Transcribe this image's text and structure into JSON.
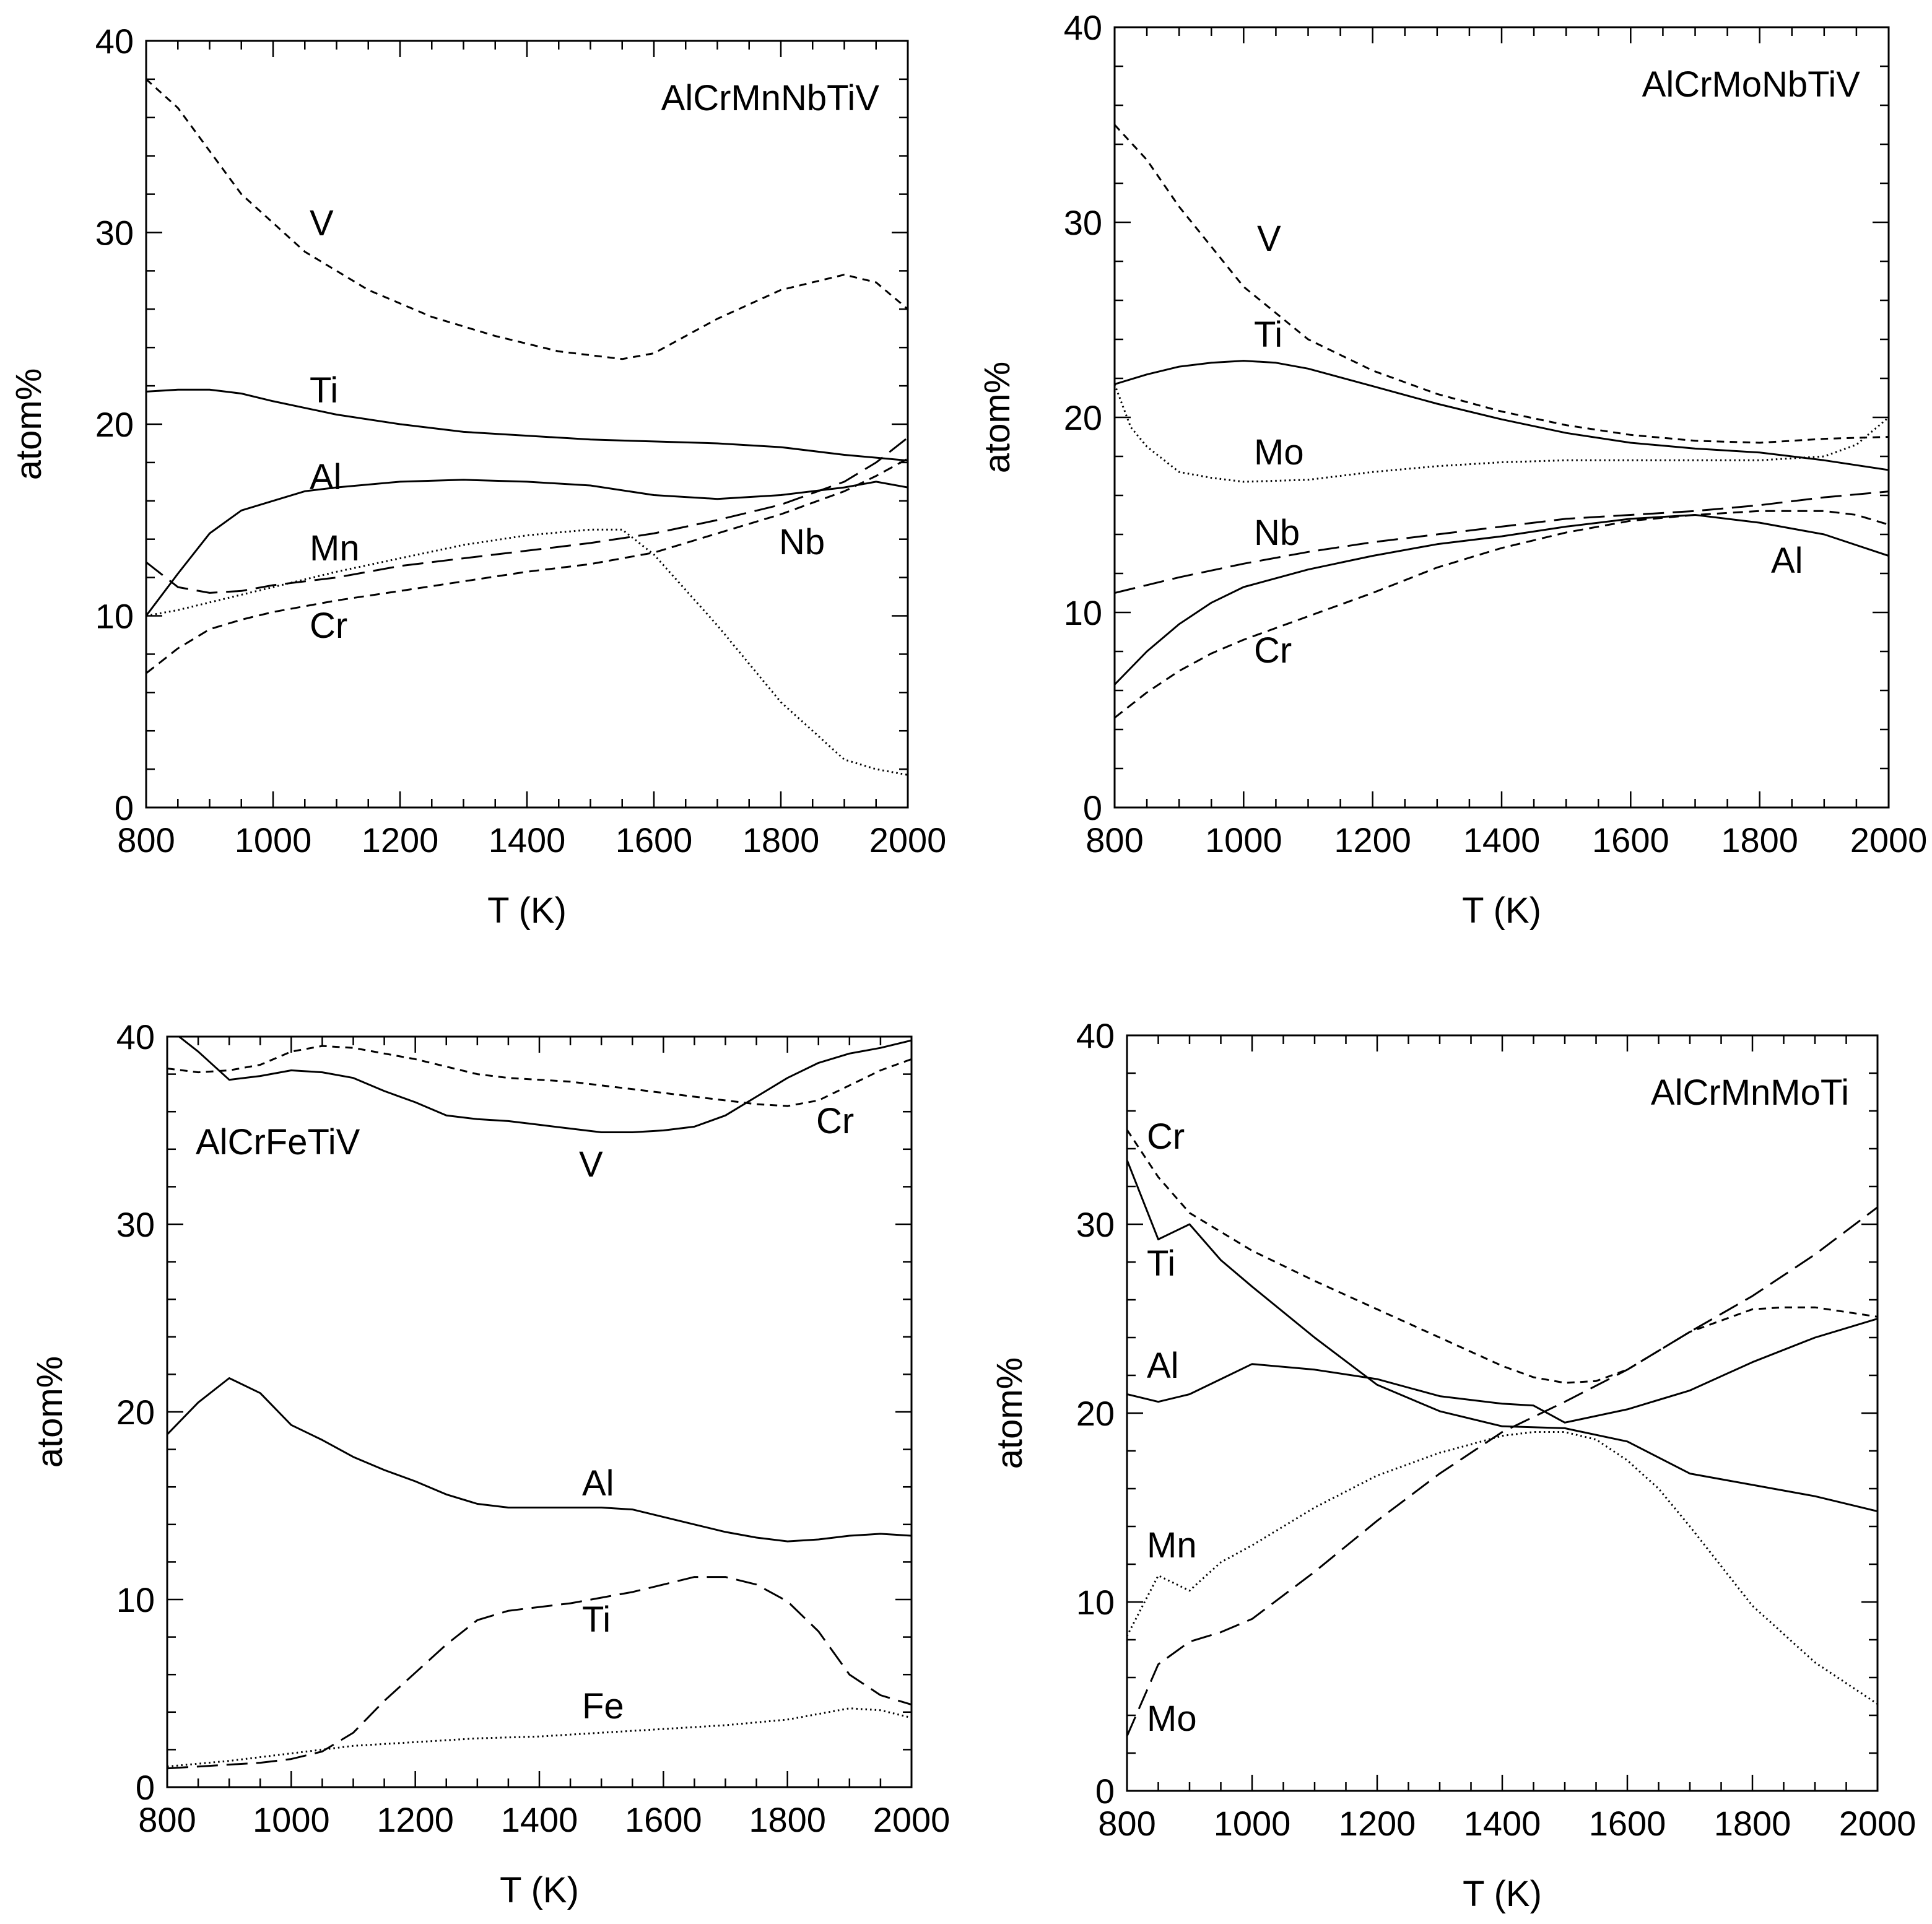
{
  "chart_data": [
    {
      "type": "line",
      "title": "AlCrMnNbTiV",
      "xlabel": "T (K)",
      "ylabel": "atom%",
      "xlim": [
        800,
        2000
      ],
      "ylim": [
        0,
        40
      ],
      "xticks": [
        800,
        1000,
        1200,
        1400,
        1600,
        1800,
        2000
      ],
      "yticks": [
        0,
        10,
        20,
        30,
        40
      ],
      "title_position": "top-right",
      "series": [
        {
          "name": "V",
          "style": "short-dash",
          "x": [
            800,
            850,
            950,
            1050,
            1150,
            1250,
            1350,
            1450,
            1550,
            1600,
            1700,
            1800,
            1900,
            1950,
            2000
          ],
          "y": [
            38,
            36.5,
            32,
            29,
            27,
            25.6,
            24.6,
            23.8,
            23.4,
            23.7,
            25.5,
            27,
            27.8,
            27.4,
            26
          ]
        },
        {
          "name": "Ti",
          "style": "solid",
          "x": [
            800,
            850,
            900,
            950,
            1000,
            1100,
            1200,
            1300,
            1400,
            1500,
            1600,
            1700,
            1800,
            1900,
            2000
          ],
          "y": [
            21.7,
            21.8,
            21.8,
            21.6,
            21.2,
            20.5,
            20,
            19.6,
            19.4,
            19.2,
            19.1,
            19,
            18.8,
            18.4,
            18.1
          ]
        },
        {
          "name": "Al",
          "style": "solid",
          "x": [
            800,
            850,
            900,
            950,
            1000,
            1050,
            1100,
            1200,
            1300,
            1400,
            1500,
            1600,
            1700,
            1800,
            1900,
            1950,
            2000
          ],
          "y": [
            10,
            12.2,
            14.3,
            15.5,
            16,
            16.5,
            16.7,
            17,
            17.1,
            17,
            16.8,
            16.3,
            16.1,
            16.3,
            16.7,
            17,
            16.7
          ]
        },
        {
          "name": "Mn",
          "style": "dotted",
          "x": [
            800,
            850,
            900,
            1000,
            1100,
            1200,
            1300,
            1400,
            1500,
            1550,
            1600,
            1700,
            1800,
            1900,
            1950,
            2000
          ],
          "y": [
            10,
            10.3,
            10.7,
            11.5,
            12.3,
            13,
            13.7,
            14.2,
            14.5,
            14.5,
            13.2,
            9.5,
            5.5,
            2.5,
            2,
            1.7
          ]
        },
        {
          "name": "Nb",
          "style": "long-dash",
          "x": [
            800,
            850,
            900,
            950,
            1000,
            1100,
            1200,
            1300,
            1400,
            1500,
            1600,
            1700,
            1800,
            1900,
            1950,
            2000
          ],
          "y": [
            12.8,
            11.5,
            11.2,
            11.3,
            11.6,
            12,
            12.6,
            13,
            13.4,
            13.8,
            14.3,
            15,
            15.8,
            17,
            18,
            19.3
          ]
        },
        {
          "name": "Cr",
          "style": "dash",
          "x": [
            800,
            850,
            900,
            950,
            1000,
            1100,
            1200,
            1300,
            1400,
            1500,
            1600,
            1700,
            1800,
            1900,
            1950,
            2000
          ],
          "y": [
            7,
            8.3,
            9.3,
            9.8,
            10.2,
            10.8,
            11.3,
            11.8,
            12.3,
            12.7,
            13.3,
            14.3,
            15.3,
            16.5,
            17.3,
            18.2
          ]
        }
      ]
    },
    {
      "type": "line",
      "title": "AlCrMoNbTiV",
      "xlabel": "T (K)",
      "ylabel": "atom%",
      "xlim": [
        800,
        2000
      ],
      "ylim": [
        0,
        40
      ],
      "xticks": [
        800,
        1000,
        1200,
        1400,
        1600,
        1800,
        2000
      ],
      "yticks": [
        0,
        10,
        20,
        30,
        40
      ],
      "title_position": "top-right",
      "series": [
        {
          "name": "V",
          "style": "short-dash",
          "x": [
            800,
            850,
            900,
            1000,
            1100,
            1200,
            1300,
            1400,
            1500,
            1600,
            1700,
            1800,
            1900,
            2000
          ],
          "y": [
            35,
            33.2,
            30.8,
            26.7,
            24,
            22.4,
            21.2,
            20.3,
            19.6,
            19.1,
            18.8,
            18.7,
            18.9,
            19
          ]
        },
        {
          "name": "Ti",
          "style": "solid",
          "x": [
            800,
            850,
            900,
            950,
            1000,
            1050,
            1100,
            1200,
            1300,
            1400,
            1500,
            1600,
            1700,
            1800,
            1900,
            2000
          ],
          "y": [
            21.7,
            22.2,
            22.6,
            22.8,
            22.9,
            22.8,
            22.5,
            21.6,
            20.7,
            19.9,
            19.2,
            18.7,
            18.4,
            18.2,
            17.8,
            17.3
          ]
        },
        {
          "name": "Mo",
          "style": "dotted",
          "x": [
            800,
            825,
            850,
            900,
            950,
            1000,
            1100,
            1200,
            1300,
            1400,
            1500,
            1600,
            1700,
            1800,
            1900,
            1950,
            2000
          ],
          "y": [
            21.7,
            19.5,
            18.5,
            17.2,
            16.9,
            16.7,
            16.8,
            17.2,
            17.5,
            17.7,
            17.8,
            17.8,
            17.8,
            17.8,
            18,
            18.6,
            20
          ]
        },
        {
          "name": "Nb",
          "style": "long-dash",
          "x": [
            800,
            900,
            1000,
            1100,
            1200,
            1300,
            1400,
            1500,
            1600,
            1700,
            1800,
            1900,
            2000
          ],
          "y": [
            11,
            11.8,
            12.5,
            13.1,
            13.6,
            14,
            14.4,
            14.8,
            15,
            15.2,
            15.5,
            15.9,
            16.2
          ]
        },
        {
          "name": "Al",
          "style": "solid",
          "x": [
            800,
            850,
            900,
            950,
            1000,
            1100,
            1200,
            1300,
            1400,
            1500,
            1600,
            1700,
            1800,
            1900,
            2000
          ],
          "y": [
            6.3,
            8,
            9.4,
            10.5,
            11.3,
            12.2,
            12.9,
            13.5,
            13.9,
            14.4,
            14.8,
            15,
            14.6,
            14,
            12.9
          ]
        },
        {
          "name": "Cr",
          "style": "dash",
          "x": [
            800,
            850,
            900,
            950,
            1000,
            1100,
            1200,
            1300,
            1400,
            1500,
            1600,
            1700,
            1800,
            1900,
            1950,
            2000
          ],
          "y": [
            4.6,
            5.9,
            7,
            7.9,
            8.6,
            9.8,
            11,
            12.3,
            13.3,
            14.1,
            14.7,
            15,
            15.2,
            15.2,
            15,
            14.5
          ]
        }
      ]
    },
    {
      "type": "line",
      "title": "AlCrFeTiV",
      "xlabel": "T (K)",
      "ylabel": "atom%",
      "xlim": [
        800,
        2000
      ],
      "ylim": [
        0,
        40
      ],
      "xticks": [
        800,
        1000,
        1200,
        1400,
        1600,
        1800,
        2000
      ],
      "yticks": [
        0,
        10,
        20,
        30,
        40
      ],
      "title_position": "top-left",
      "series": [
        {
          "name": "V",
          "style": "solid",
          "x": [
            800,
            850,
            900,
            950,
            1000,
            1050,
            1100,
            1150,
            1200,
            1250,
            1300,
            1350,
            1400,
            1450,
            1500,
            1550,
            1600,
            1650,
            1700,
            1750,
            1800,
            1850,
            1900,
            1950,
            2000
          ],
          "y": [
            40.5,
            39.2,
            37.7,
            37.9,
            38.2,
            38.1,
            37.8,
            37.1,
            36.5,
            35.8,
            35.6,
            35.5,
            35.3,
            35.1,
            34.9,
            34.9,
            35,
            35.2,
            35.8,
            36.8,
            37.8,
            38.6,
            39.1,
            39.4,
            39.8
          ]
        },
        {
          "name": "Cr",
          "style": "short-dash",
          "x": [
            800,
            850,
            900,
            950,
            1000,
            1050,
            1100,
            1150,
            1200,
            1250,
            1300,
            1350,
            1400,
            1450,
            1500,
            1550,
            1600,
            1650,
            1700,
            1750,
            1800,
            1850,
            1900,
            1950,
            2000
          ],
          "y": [
            38.3,
            38.1,
            38.2,
            38.5,
            39.2,
            39.5,
            39.4,
            39.1,
            38.8,
            38.4,
            38,
            37.8,
            37.7,
            37.6,
            37.4,
            37.2,
            37,
            36.8,
            36.6,
            36.4,
            36.3,
            36.6,
            37.4,
            38.2,
            38.8
          ]
        },
        {
          "name": "Al",
          "style": "solid",
          "x": [
            800,
            850,
            900,
            950,
            1000,
            1050,
            1100,
            1150,
            1200,
            1250,
            1300,
            1350,
            1400,
            1450,
            1500,
            1550,
            1600,
            1650,
            1700,
            1750,
            1800,
            1850,
            1900,
            1950,
            2000
          ],
          "y": [
            18.8,
            20.5,
            21.8,
            21,
            19.3,
            18.5,
            17.6,
            16.9,
            16.3,
            15.6,
            15.1,
            14.9,
            14.9,
            14.9,
            14.9,
            14.8,
            14.4,
            14,
            13.6,
            13.3,
            13.1,
            13.2,
            13.4,
            13.5,
            13.4
          ]
        },
        {
          "name": "Ti",
          "style": "long-dash",
          "x": [
            800,
            850,
            900,
            950,
            1000,
            1050,
            1100,
            1150,
            1200,
            1250,
            1300,
            1350,
            1400,
            1450,
            1500,
            1550,
            1600,
            1650,
            1700,
            1750,
            1800,
            1850,
            1900,
            1950,
            2000
          ],
          "y": [
            1,
            1.1,
            1.2,
            1.3,
            1.5,
            1.9,
            2.9,
            4.6,
            6.1,
            7.6,
            8.9,
            9.4,
            9.6,
            9.8,
            10.1,
            10.4,
            10.8,
            11.2,
            11.2,
            10.8,
            9.9,
            8.3,
            6,
            4.9,
            4.4
          ]
        },
        {
          "name": "Fe",
          "style": "dotted",
          "x": [
            800,
            900,
            1000,
            1100,
            1200,
            1300,
            1400,
            1500,
            1600,
            1700,
            1800,
            1850,
            1900,
            1950,
            2000
          ],
          "y": [
            1.1,
            1.4,
            1.8,
            2.2,
            2.4,
            2.6,
            2.7,
            2.9,
            3.1,
            3.3,
            3.6,
            3.9,
            4.2,
            4.1,
            3.7
          ]
        }
      ]
    },
    {
      "type": "line",
      "title": "AlCrMnMoTi",
      "xlabel": "T (K)",
      "ylabel": "atom%",
      "xlim": [
        800,
        2000
      ],
      "ylim": [
        0,
        40
      ],
      "xticks": [
        800,
        1000,
        1200,
        1400,
        1600,
        1800,
        2000
      ],
      "yticks": [
        0,
        10,
        20,
        30,
        40
      ],
      "title_position": "top-right",
      "series": [
        {
          "name": "Cr",
          "style": "short-dash",
          "x": [
            800,
            850,
            900,
            1000,
            1100,
            1200,
            1300,
            1400,
            1450,
            1500,
            1550,
            1600,
            1700,
            1800,
            1850,
            1900,
            2000
          ],
          "y": [
            35,
            32.5,
            30.6,
            28.6,
            27,
            25.5,
            24,
            22.5,
            21.9,
            21.6,
            21.7,
            22.3,
            24.3,
            25.5,
            25.6,
            25.6,
            25.1
          ]
        },
        {
          "name": "Ti",
          "style": "solid",
          "x": [
            800,
            850,
            900,
            950,
            1000,
            1100,
            1200,
            1300,
            1400,
            1500,
            1600,
            1700,
            1800,
            1900,
            2000
          ],
          "y": [
            33.4,
            29.2,
            30,
            28.1,
            26.7,
            24,
            21.5,
            20.1,
            19.3,
            19.2,
            18.5,
            16.8,
            16.2,
            15.6,
            14.8
          ]
        },
        {
          "name": "Al",
          "style": "solid",
          "x": [
            800,
            850,
            900,
            950,
            1000,
            1100,
            1200,
            1300,
            1400,
            1450,
            1500,
            1600,
            1700,
            1800,
            1900,
            2000
          ],
          "y": [
            21,
            20.6,
            21,
            21.8,
            22.6,
            22.3,
            21.8,
            20.9,
            20.5,
            20.4,
            19.5,
            20.2,
            21.2,
            22.7,
            24,
            25
          ]
        },
        {
          "name": "Mn",
          "style": "dotted",
          "x": [
            800,
            850,
            900,
            950,
            1000,
            1100,
            1200,
            1300,
            1400,
            1450,
            1500,
            1550,
            1600,
            1650,
            1700,
            1800,
            1900,
            2000
          ],
          "y": [
            8.2,
            11.4,
            10.6,
            12.1,
            13,
            15,
            16.7,
            17.9,
            18.8,
            19,
            19,
            18.6,
            17.5,
            16,
            14,
            9.8,
            6.8,
            4.6
          ]
        },
        {
          "name": "Mo",
          "style": "long-dash",
          "x": [
            800,
            850,
            900,
            950,
            1000,
            1100,
            1200,
            1300,
            1400,
            1500,
            1600,
            1700,
            1800,
            1900,
            2000
          ],
          "y": [
            2.9,
            6.7,
            7.9,
            8.4,
            9.1,
            11.6,
            14.3,
            16.8,
            19,
            20.6,
            22.3,
            24.3,
            26.2,
            28.4,
            30.9
          ]
        }
      ]
    }
  ]
}
